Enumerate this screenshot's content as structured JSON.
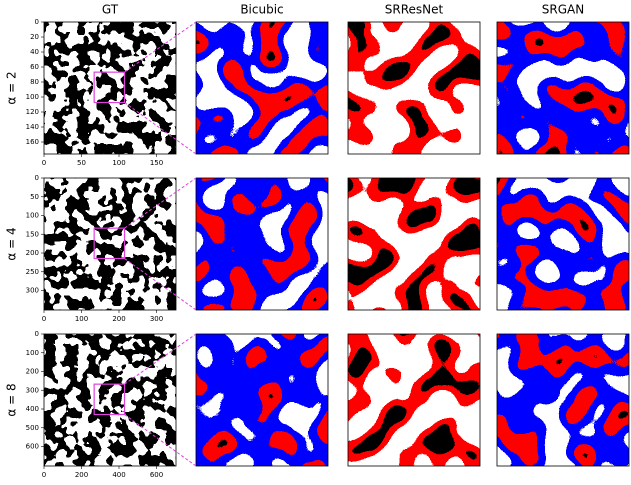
{
  "column_titles": [
    "GT",
    "Bicubic",
    "SRResNet",
    "SRGAN"
  ],
  "chart_data": [
    {
      "type": "image",
      "ylabel": "α = 2",
      "xlim": [
        0,
        176
      ],
      "ylim": [
        0,
        176
      ],
      "xticks": [
        0,
        50,
        100,
        150
      ],
      "yticks": [
        0,
        20,
        40,
        60,
        80,
        100,
        120,
        140,
        160
      ]
    },
    {
      "type": "image",
      "ylabel": "α = 4",
      "xlim": [
        0,
        352
      ],
      "ylim": [
        0,
        352
      ],
      "xticks": [
        0,
        100,
        200,
        300
      ],
      "yticks": [
        0,
        50,
        100,
        150,
        200,
        250,
        300
      ]
    },
    {
      "type": "image",
      "ylabel": "α = 8",
      "xlim": [
        0,
        704
      ],
      "ylim": [
        0,
        704
      ],
      "xticks": [
        0,
        200,
        400,
        600
      ],
      "yticks": [
        0,
        100,
        200,
        300,
        400,
        500,
        600
      ]
    }
  ]
}
